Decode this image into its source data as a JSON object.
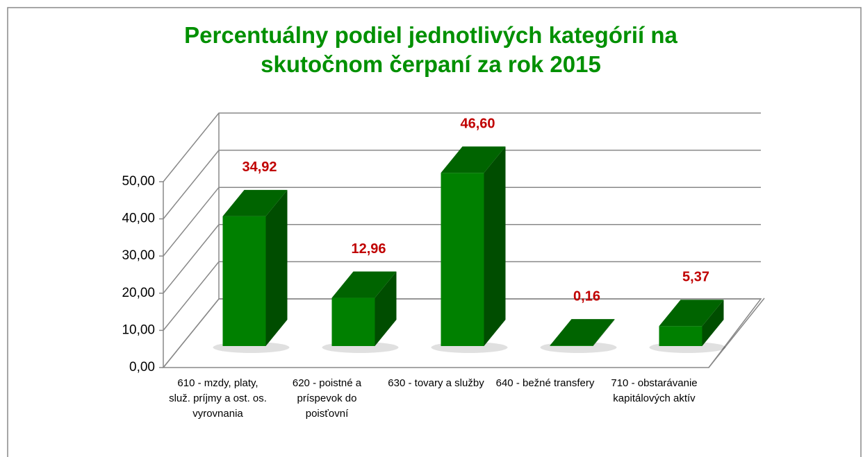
{
  "chart_data": {
    "type": "bar3d",
    "title": "Percentuálny podiel jednotlivých kategórií na skutočnom čerpaní za rok 2015",
    "categories": [
      "610 - mzdy, platy, služ. príjmy a ost. os. vyrovnania",
      "620 - poistné a príspevok do poisťovní",
      "630 - tovary a služby",
      "640 - bežné transfery",
      "710 - obstarávanie kapitálových aktív"
    ],
    "values": [
      34.92,
      12.96,
      46.6,
      0.16,
      5.37
    ],
    "value_labels": [
      "34,92",
      "12,96",
      "46,60",
      "0,16",
      "5,37"
    ],
    "color": "#008000",
    "ylim": [
      0,
      50
    ],
    "yticks": [
      {
        "value": 0,
        "label": "0,00"
      },
      {
        "value": 10,
        "label": "10,00"
      },
      {
        "value": 20,
        "label": "20,00"
      },
      {
        "value": 30,
        "label": "30,00"
      },
      {
        "value": 40,
        "label": "40,00"
      },
      {
        "value": 50,
        "label": "50,00"
      }
    ],
    "grid": true
  }
}
